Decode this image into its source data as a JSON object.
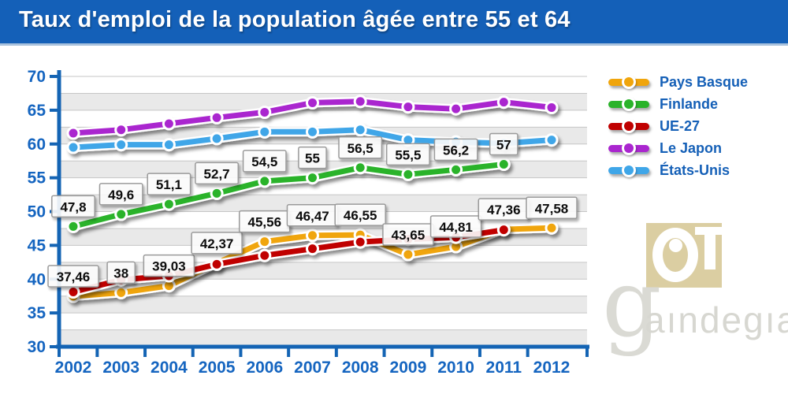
{
  "title": "Taux d'emploi de la population âgée entre 55 et 64",
  "watermark": {
    "initial": "g",
    "rest": "aındegıa"
  },
  "colors": {
    "title_bar": "#1460B8",
    "axis": "#1464B4",
    "axis_text": "#1565C0",
    "legend_text": "#1560B7",
    "band": "#E9E9E9",
    "grid": "#C6C6C6",
    "label_box_border": "#9A9A9A",
    "label_text": "#0A0A0A",
    "watermark_tan": "#DBCEA2",
    "watermark_gray": "#D7D7D1"
  },
  "chart_data": {
    "type": "line",
    "title": "Taux d'emploi de la population âgée entre 55 et 64",
    "x": [
      2002,
      2003,
      2004,
      2005,
      2006,
      2007,
      2008,
      2009,
      2010,
      2011,
      2012
    ],
    "ylim": [
      30,
      70
    ],
    "y_ticks": [
      30,
      35,
      40,
      45,
      50,
      55,
      60,
      65,
      70
    ],
    "grid": true,
    "legend_position": "right",
    "series": [
      {
        "name": "Pays Basque",
        "color": "#F0A50C",
        "values": [
          37.46,
          38,
          39.03,
          42.37,
          45.56,
          46.47,
          46.55,
          43.65,
          44.81,
          47.36,
          47.58
        ],
        "labels": [
          "37,46",
          "38",
          "39,03",
          "42,37",
          "45,56",
          "46,47",
          "46,55",
          "43,65",
          "44,81",
          "47,36",
          "47,58"
        ]
      },
      {
        "name": "Finlande",
        "color": "#2AB32A",
        "values": [
          47.8,
          49.6,
          51.1,
          52.7,
          54.5,
          55,
          56.5,
          55.5,
          56.2,
          57,
          null
        ],
        "labels": [
          "47,8",
          "49,6",
          "51,1",
          "52,7",
          "54,5",
          "55",
          "56,5",
          "55,5",
          "56,2",
          "57",
          null
        ]
      },
      {
        "name": "UE-27",
        "color": "#C00000",
        "values": [
          38.1,
          39.9,
          40.5,
          42.2,
          43.5,
          44.5,
          45.5,
          45.9,
          46.2,
          47.3,
          null
        ],
        "labels": null
      },
      {
        "name": "Le Japon",
        "color": "#AA26CF",
        "values": [
          61.6,
          62.1,
          63,
          63.9,
          64.7,
          66.1,
          66.3,
          65.5,
          65.2,
          66.2,
          65.4
        ],
        "labels": null
      },
      {
        "name": "États-Unis",
        "color": "#3FA6E8",
        "values": [
          59.5,
          59.9,
          59.9,
          60.8,
          61.8,
          61.8,
          62.1,
          60.6,
          60.3,
          60.1,
          60.6
        ],
        "labels": null
      }
    ]
  }
}
